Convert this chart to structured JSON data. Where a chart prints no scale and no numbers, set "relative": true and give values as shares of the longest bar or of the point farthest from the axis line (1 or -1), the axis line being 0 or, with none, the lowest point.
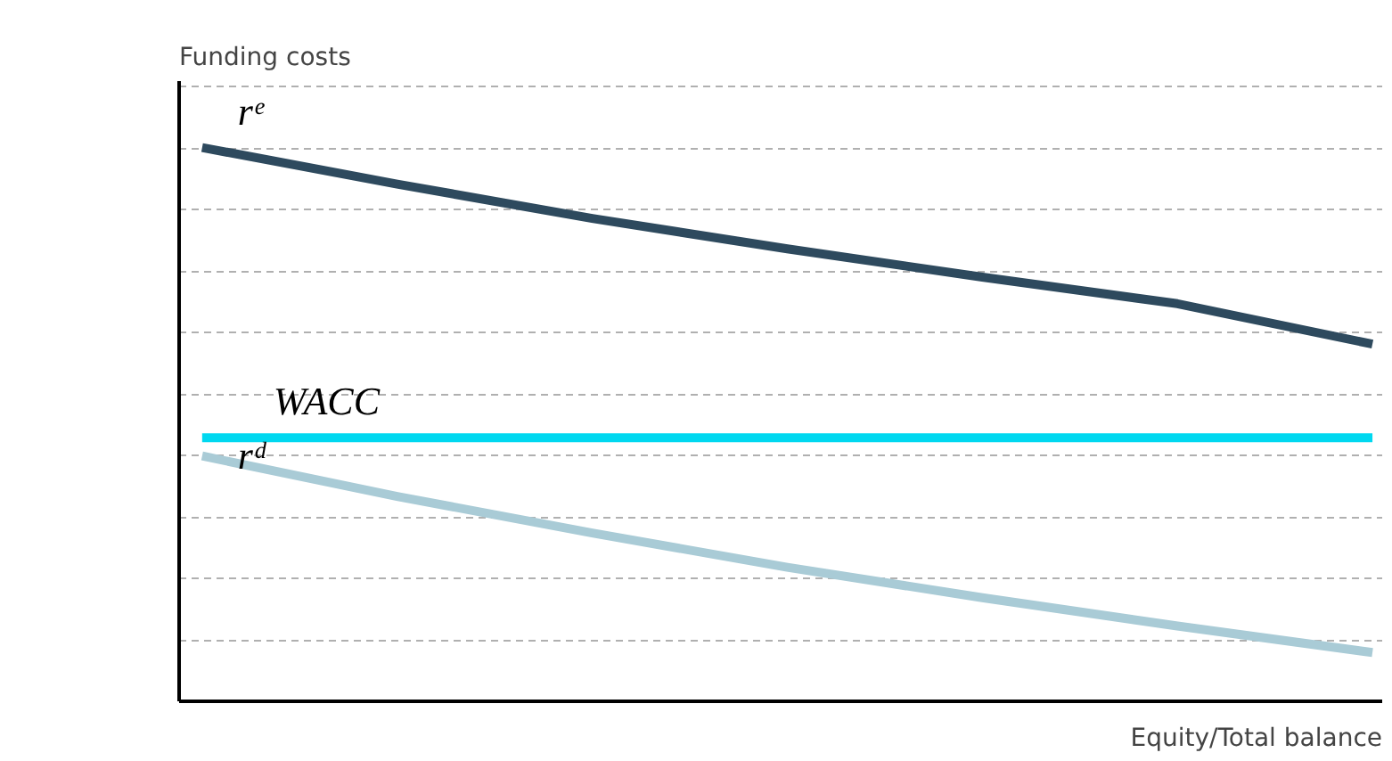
{
  "chart_data": {
    "type": "line",
    "relative": true,
    "xlabel": "Equity/Total balance",
    "ylabel": "Funding costs",
    "categories": [
      null,
      null,
      null,
      null,
      null,
      null,
      null
    ],
    "series": [
      {
        "name": "rᵉ",
        "color": "#2e4a5e",
        "values": [
          1.0,
          0.934,
          0.872,
          0.817,
          0.766,
          0.718,
          0.645
        ]
      },
      {
        "name": "WACC",
        "color": "#00d8f0",
        "values": [
          0.476,
          0.476,
          0.476,
          0.476,
          0.476,
          0.476,
          0.476
        ]
      },
      {
        "name": "rᵈ",
        "color": "#a9cbd6",
        "values": [
          0.443,
          0.37,
          0.304,
          0.242,
          0.187,
          0.136,
          0.088
        ]
      }
    ],
    "grid": "y",
    "marker": "none",
    "line_style": "solid"
  }
}
